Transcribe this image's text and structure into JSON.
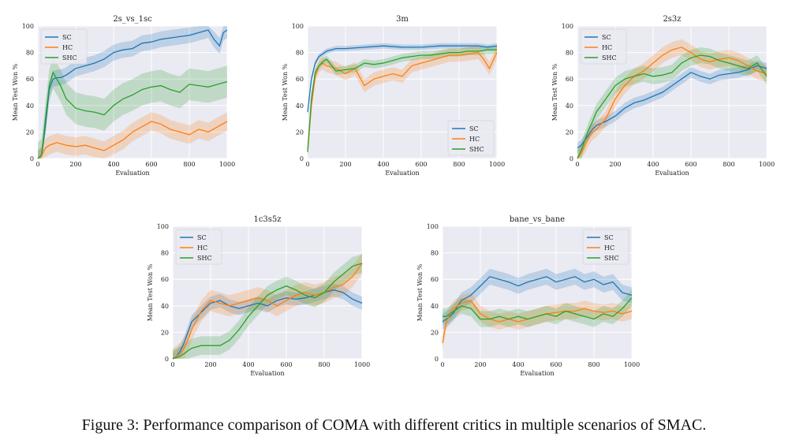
{
  "figure": {
    "caption": "Figure 3: Performance comparison of COMA with different critics in multiple scenarios of SMAC."
  },
  "colors": {
    "SC": "#1f77b4",
    "HC": "#ff7f0e",
    "SHC": "#2ca02c",
    "panel_bg": "#eaeaf2",
    "grid": "#ffffff"
  },
  "chart_data": [
    {
      "type": "line",
      "title": "2s_vs_1sc",
      "xlabel": "Evaluation",
      "ylabel": "Mean Test Won %",
      "xlim": [
        0,
        1000
      ],
      "ylim": [
        0,
        100
      ],
      "xticks": [
        0,
        200,
        400,
        600,
        800,
        1000
      ],
      "yticks": [
        0,
        20,
        40,
        60,
        80,
        100
      ],
      "grid": true,
      "legend": "top-left",
      "series": [
        {
          "name": "SC",
          "x": [
            0,
            20,
            40,
            60,
            80,
            100,
            120,
            150,
            200,
            250,
            300,
            350,
            400,
            450,
            500,
            550,
            600,
            650,
            700,
            750,
            800,
            850,
            900,
            930,
            960,
            980,
            1000
          ],
          "y": [
            0,
            2,
            25,
            52,
            60,
            61,
            61,
            63,
            68,
            70,
            72,
            75,
            80,
            82,
            83,
            87,
            88,
            90,
            91,
            92,
            93,
            95,
            97,
            90,
            85,
            95,
            97
          ],
          "band": 6
        },
        {
          "name": "HC",
          "x": [
            0,
            20,
            40,
            60,
            80,
            100,
            150,
            200,
            250,
            300,
            350,
            400,
            450,
            500,
            550,
            600,
            650,
            700,
            750,
            800,
            850,
            900,
            950,
            1000
          ],
          "y": [
            0,
            2,
            8,
            10,
            11,
            12,
            10,
            9,
            10,
            8,
            6,
            10,
            14,
            20,
            24,
            28,
            26,
            22,
            20,
            18,
            22,
            20,
            24,
            28
          ],
          "band": 7
        },
        {
          "name": "SHC",
          "x": [
            0,
            20,
            40,
            60,
            80,
            100,
            120,
            150,
            200,
            250,
            300,
            350,
            400,
            450,
            500,
            550,
            600,
            650,
            700,
            750,
            800,
            850,
            900,
            950,
            1000
          ],
          "y": [
            0,
            3,
            30,
            55,
            65,
            60,
            55,
            45,
            38,
            36,
            35,
            33,
            40,
            45,
            48,
            52,
            54,
            55,
            52,
            50,
            56,
            55,
            54,
            56,
            58
          ],
          "band": 12
        }
      ]
    },
    {
      "type": "line",
      "title": "3m",
      "xlabel": "Evaluation",
      "ylabel": "Mean Test Won %",
      "xlim": [
        0,
        1000
      ],
      "ylim": [
        0,
        100
      ],
      "xticks": [
        0,
        200,
        400,
        600,
        800,
        1000
      ],
      "yticks": [
        0,
        20,
        40,
        60,
        80,
        100
      ],
      "grid": true,
      "legend": "bottom-right",
      "series": [
        {
          "name": "SC",
          "x": [
            0,
            20,
            40,
            60,
            80,
            100,
            150,
            200,
            300,
            400,
            500,
            600,
            700,
            800,
            900,
            950,
            1000
          ],
          "y": [
            35,
            60,
            72,
            77,
            79,
            81,
            83,
            83,
            84,
            85,
            84,
            84,
            85,
            85,
            85,
            84,
            85
          ],
          "band": 2
        },
        {
          "name": "HC",
          "x": [
            0,
            20,
            40,
            60,
            80,
            100,
            150,
            200,
            250,
            300,
            350,
            400,
            450,
            500,
            550,
            600,
            650,
            700,
            750,
            800,
            850,
            900,
            930,
            960,
            1000
          ],
          "y": [
            5,
            40,
            62,
            70,
            72,
            70,
            68,
            64,
            68,
            55,
            60,
            62,
            64,
            62,
            70,
            72,
            74,
            76,
            78,
            78,
            79,
            80,
            75,
            68,
            80
          ],
          "band": 5
        },
        {
          "name": "SHC",
          "x": [
            0,
            20,
            40,
            60,
            80,
            100,
            150,
            200,
            250,
            300,
            350,
            400,
            450,
            500,
            550,
            600,
            650,
            700,
            750,
            800,
            850,
            900,
            950,
            1000
          ],
          "y": [
            5,
            45,
            65,
            70,
            73,
            75,
            66,
            67,
            68,
            72,
            71,
            72,
            74,
            76,
            77,
            78,
            78,
            79,
            80,
            80,
            81,
            81,
            82,
            82
          ],
          "band": 3
        }
      ]
    },
    {
      "type": "line",
      "title": "2s3z",
      "xlabel": "Evaluation",
      "ylabel": "Mean Test Won %",
      "xlim": [
        0,
        1000
      ],
      "ylim": [
        0,
        100
      ],
      "xticks": [
        0,
        200,
        400,
        600,
        800,
        1000
      ],
      "yticks": [
        0,
        20,
        40,
        60,
        80,
        100
      ],
      "grid": true,
      "legend": "top-left",
      "series": [
        {
          "name": "SC",
          "x": [
            0,
            20,
            40,
            60,
            80,
            100,
            150,
            200,
            250,
            300,
            350,
            400,
            450,
            500,
            550,
            600,
            650,
            700,
            750,
            800,
            850,
            900,
            950,
            1000
          ],
          "y": [
            8,
            10,
            14,
            18,
            22,
            25,
            28,
            32,
            38,
            42,
            44,
            47,
            50,
            55,
            60,
            65,
            62,
            60,
            63,
            64,
            65,
            67,
            70,
            68
          ],
          "band": 4
        },
        {
          "name": "HC",
          "x": [
            0,
            20,
            40,
            60,
            80,
            100,
            150,
            200,
            250,
            300,
            350,
            400,
            450,
            500,
            550,
            600,
            650,
            700,
            750,
            800,
            850,
            900,
            950,
            1000
          ],
          "y": [
            0,
            4,
            10,
            16,
            20,
            22,
            30,
            45,
            55,
            62,
            66,
            72,
            78,
            82,
            84,
            80,
            75,
            73,
            75,
            76,
            74,
            70,
            66,
            64
          ],
          "band": 6
        },
        {
          "name": "SHC",
          "x": [
            0,
            20,
            40,
            60,
            80,
            100,
            150,
            200,
            250,
            300,
            350,
            400,
            450,
            500,
            550,
            600,
            650,
            700,
            750,
            800,
            850,
            900,
            950,
            1000
          ],
          "y": [
            0,
            6,
            14,
            22,
            28,
            35,
            45,
            55,
            60,
            62,
            64,
            62,
            63,
            65,
            72,
            76,
            78,
            77,
            74,
            72,
            70,
            68,
            72,
            62
          ],
          "band": 6
        }
      ]
    },
    {
      "type": "line",
      "title": "1c3s5z",
      "xlabel": "Evaluation",
      "ylabel": "Mean Test Won %",
      "xlim": [
        0,
        1000
      ],
      "ylim": [
        0,
        100
      ],
      "xticks": [
        0,
        200,
        400,
        600,
        800,
        1000
      ],
      "yticks": [
        0,
        20,
        40,
        60,
        80,
        100
      ],
      "grid": true,
      "legend": "top-left",
      "series": [
        {
          "name": "SC",
          "x": [
            0,
            20,
            40,
            60,
            80,
            100,
            150,
            200,
            250,
            300,
            350,
            400,
            450,
            500,
            550,
            600,
            650,
            700,
            750,
            800,
            850,
            900,
            950,
            1000
          ],
          "y": [
            0,
            2,
            6,
            12,
            20,
            28,
            35,
            42,
            44,
            40,
            38,
            40,
            42,
            40,
            44,
            46,
            45,
            46,
            48,
            50,
            52,
            50,
            45,
            42
          ],
          "band": 5
        },
        {
          "name": "HC",
          "x": [
            0,
            20,
            40,
            60,
            80,
            100,
            150,
            200,
            250,
            300,
            350,
            400,
            450,
            500,
            550,
            600,
            650,
            700,
            750,
            800,
            850,
            900,
            950,
            1000
          ],
          "y": [
            0,
            2,
            4,
            8,
            14,
            22,
            36,
            44,
            42,
            40,
            42,
            44,
            46,
            44,
            40,
            44,
            48,
            50,
            48,
            50,
            54,
            56,
            62,
            72
          ],
          "band": 8
        },
        {
          "name": "SHC",
          "x": [
            0,
            20,
            40,
            60,
            80,
            100,
            150,
            200,
            250,
            300,
            350,
            400,
            450,
            500,
            550,
            600,
            650,
            700,
            750,
            800,
            850,
            900,
            950,
            1000
          ],
          "y": [
            0,
            1,
            2,
            4,
            6,
            8,
            10,
            10,
            10,
            14,
            22,
            32,
            40,
            48,
            52,
            55,
            52,
            48,
            46,
            50,
            58,
            64,
            70,
            72
          ],
          "band": 7
        }
      ]
    },
    {
      "type": "line",
      "title": "bane_vs_bane",
      "xlabel": "Evaluation",
      "ylabel": "Mean Test Won %",
      "xlim": [
        0,
        1000
      ],
      "ylim": [
        0,
        100
      ],
      "xticks": [
        0,
        200,
        400,
        600,
        800,
        1000
      ],
      "yticks": [
        0,
        20,
        40,
        60,
        80,
        100
      ],
      "grid": true,
      "legend": "top-right",
      "series": [
        {
          "name": "SC",
          "x": [
            0,
            20,
            40,
            60,
            80,
            100,
            150,
            200,
            250,
            300,
            350,
            400,
            450,
            500,
            550,
            600,
            650,
            700,
            750,
            800,
            850,
            900,
            950,
            1000
          ],
          "y": [
            28,
            30,
            32,
            35,
            40,
            44,
            48,
            55,
            62,
            60,
            58,
            55,
            58,
            60,
            62,
            58,
            60,
            62,
            58,
            60,
            56,
            58,
            50,
            48
          ],
          "band": 6
        },
        {
          "name": "HC",
          "x": [
            0,
            20,
            40,
            60,
            80,
            100,
            150,
            200,
            250,
            300,
            350,
            400,
            450,
            500,
            550,
            600,
            650,
            700,
            750,
            800,
            850,
            900,
            950,
            1000
          ],
          "y": [
            12,
            28,
            34,
            38,
            40,
            42,
            44,
            34,
            30,
            28,
            30,
            28,
            30,
            32,
            34,
            35,
            36,
            36,
            38,
            36,
            35,
            36,
            34,
            36
          ],
          "band": 6
        },
        {
          "name": "SHC",
          "x": [
            0,
            20,
            40,
            60,
            80,
            100,
            150,
            200,
            250,
            300,
            350,
            400,
            450,
            500,
            550,
            600,
            650,
            700,
            750,
            800,
            850,
            900,
            950,
            1000
          ],
          "y": [
            32,
            32,
            34,
            36,
            38,
            40,
            38,
            30,
            30,
            32,
            30,
            32,
            30,
            32,
            34,
            32,
            36,
            34,
            32,
            30,
            34,
            32,
            38,
            46
          ],
          "band": 6
        }
      ]
    }
  ]
}
